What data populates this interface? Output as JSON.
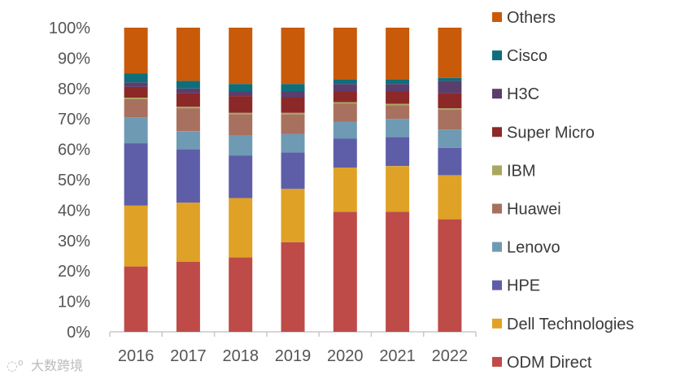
{
  "chart_data": {
    "type": "bar",
    "stacked": true,
    "percent": true,
    "title": "",
    "xlabel": "",
    "ylabel": "",
    "ylim": [
      0,
      100
    ],
    "yticks": [
      "0%",
      "10%",
      "20%",
      "30%",
      "40%",
      "50%",
      "60%",
      "70%",
      "80%",
      "90%",
      "100%"
    ],
    "categories": [
      "2016",
      "2017",
      "2018",
      "2019",
      "2020",
      "2021",
      "2022"
    ],
    "legend_position": "right",
    "series": [
      {
        "name": "ODM Direct",
        "color": "#BE4B48",
        "values": [
          21.5,
          23.0,
          24.5,
          29.5,
          39.5,
          39.5,
          37.0
        ]
      },
      {
        "name": "Dell Technologies",
        "color": "#DFA227",
        "values": [
          20.0,
          19.5,
          19.5,
          17.5,
          14.5,
          15.0,
          14.5
        ]
      },
      {
        "name": "HPE",
        "color": "#5E5EA8",
        "values": [
          20.5,
          17.5,
          14.0,
          12.0,
          9.5,
          9.5,
          9.0
        ]
      },
      {
        "name": "Lenovo",
        "color": "#6E9AB4",
        "values": [
          8.5,
          6.0,
          6.5,
          6.0,
          5.5,
          6.0,
          6.0
        ]
      },
      {
        "name": "Huawei",
        "color": "#A8705F",
        "values": [
          6.0,
          7.5,
          7.0,
          6.5,
          6.0,
          4.5,
          6.5
        ]
      },
      {
        "name": "IBM",
        "color": "#A8A860",
        "values": [
          0.5,
          0.5,
          0.5,
          0.5,
          0.5,
          0.5,
          0.5
        ]
      },
      {
        "name": "Super Micro",
        "color": "#8C2828",
        "values": [
          3.5,
          4.5,
          5.5,
          5.0,
          3.5,
          4.0,
          5.0
        ]
      },
      {
        "name": "H3C",
        "color": "#5A3E6E",
        "values": [
          1.5,
          1.5,
          1.5,
          2.0,
          2.5,
          2.5,
          4.0
        ]
      },
      {
        "name": "Cisco",
        "color": "#0E6E7A",
        "values": [
          3.0,
          2.5,
          2.5,
          2.5,
          1.5,
          1.5,
          1.0
        ]
      },
      {
        "name": "Others",
        "color": "#C85A0A",
        "values": [
          15.0,
          17.5,
          18.5,
          18.5,
          17.0,
          17.0,
          16.5
        ]
      }
    ]
  },
  "watermark": {
    "text": "大数跨境"
  }
}
